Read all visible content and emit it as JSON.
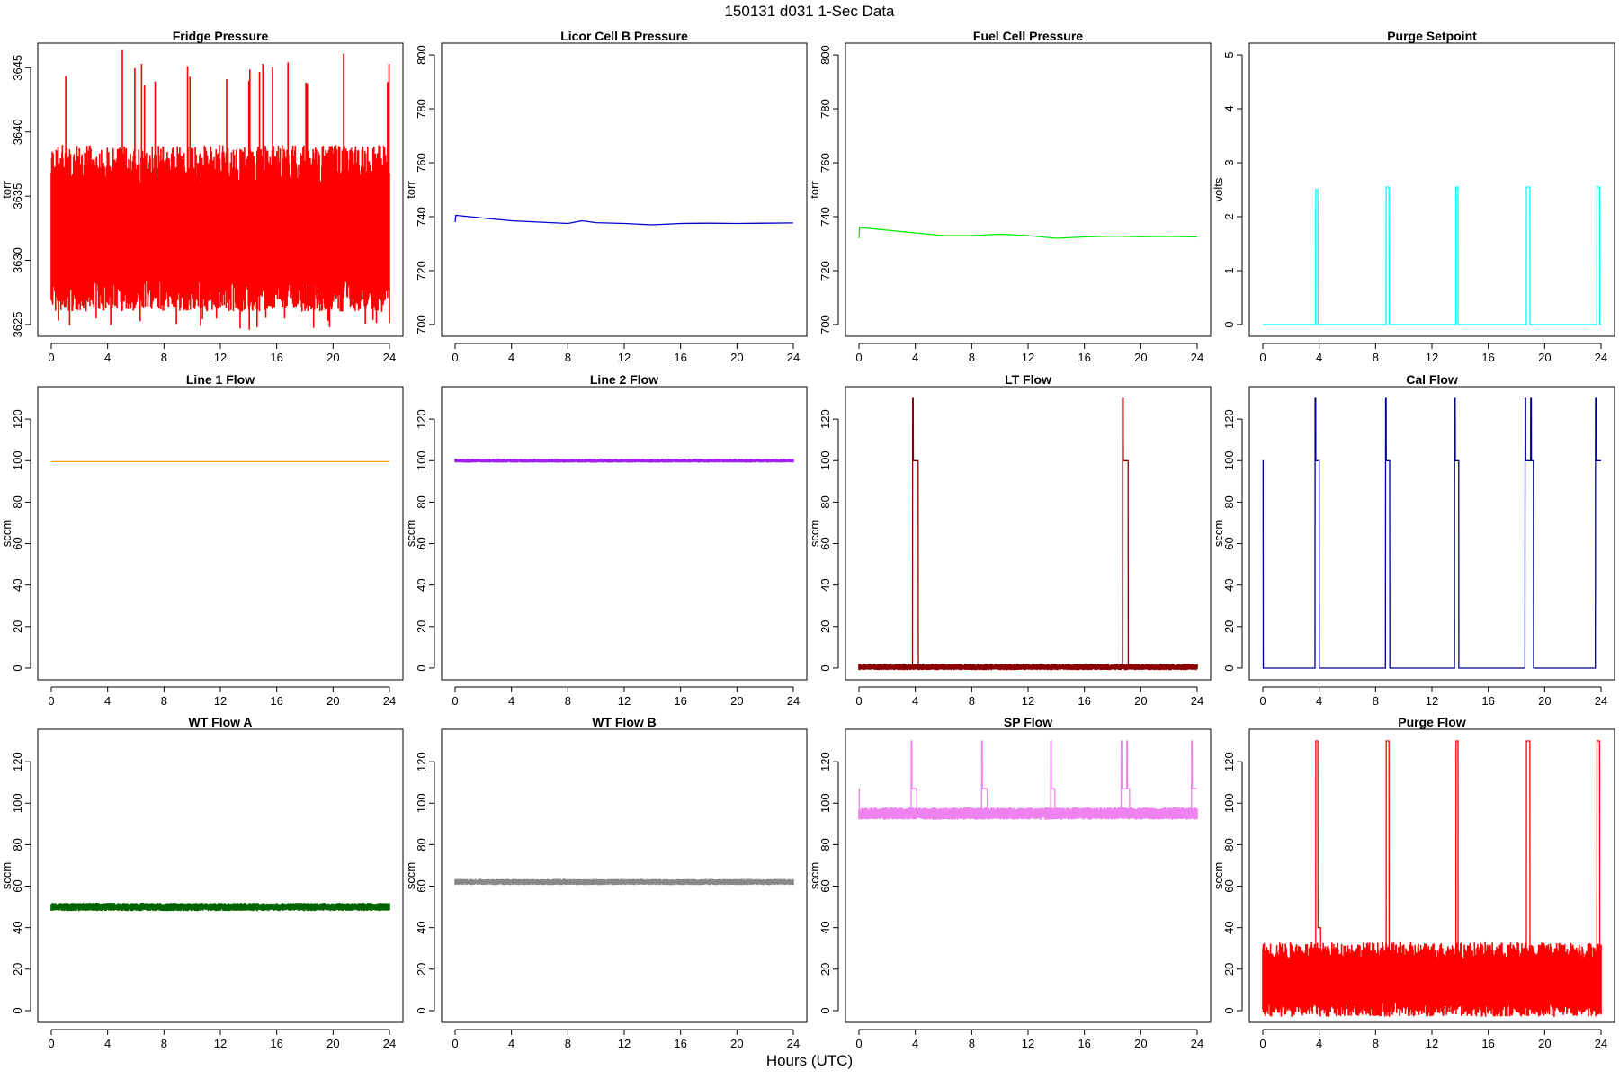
{
  "page_title": "150131    d031    1-Sec Data",
  "x_axis_label": "Hours (UTC)",
  "chart_data": [
    {
      "type": "line",
      "title": "Fridge Pressure",
      "ylabel": "torr",
      "xlim": [
        0,
        24
      ],
      "ylim": [
        3625,
        3646
      ],
      "xticks": [
        0,
        4,
        8,
        12,
        16,
        20,
        24
      ],
      "yticks": [
        3625,
        3630,
        3635,
        3640,
        3645
      ],
      "color": "#ff0000",
      "band": {
        "base": 3632,
        "lo_spread": 6,
        "hi_spread": 7,
        "noise_peak_max": 3646.5,
        "noise_peak_min": 3624.5
      },
      "series": [
        {
          "x": [
            0,
            24
          ],
          "values": [
            3632,
            3632
          ]
        }
      ]
    },
    {
      "type": "line",
      "title": "Licor Cell B Pressure",
      "ylabel": "torr",
      "xlim": [
        0,
        24
      ],
      "ylim": [
        700,
        800
      ],
      "xticks": [
        0,
        4,
        8,
        12,
        16,
        20,
        24
      ],
      "yticks": [
        700,
        720,
        740,
        760,
        780,
        800
      ],
      "color": "#0000cc",
      "series": [
        {
          "x": [
            0,
            0.05,
            2,
            4,
            6,
            8,
            9,
            10,
            12,
            14,
            16,
            18,
            20,
            22,
            24
          ],
          "values": [
            738,
            740.5,
            739.5,
            738.5,
            738,
            737.5,
            738.5,
            737.8,
            737.5,
            737,
            737.5,
            737.6,
            737.5,
            737.6,
            737.7
          ]
        }
      ]
    },
    {
      "type": "line",
      "title": "Fuel Cell Pressure",
      "ylabel": "torr",
      "xlim": [
        0,
        24
      ],
      "ylim": [
        700,
        800
      ],
      "xticks": [
        0,
        4,
        8,
        12,
        16,
        20,
        24
      ],
      "yticks": [
        700,
        720,
        740,
        760,
        780,
        800
      ],
      "color": "#00ee00",
      "series": [
        {
          "x": [
            0,
            0.05,
            2,
            4,
            6,
            8,
            10,
            12,
            14,
            16,
            18,
            20,
            22,
            24
          ],
          "values": [
            732,
            736,
            735,
            734,
            733,
            733,
            733.5,
            733,
            732,
            732.5,
            732.8,
            732.6,
            732.7,
            732.5
          ]
        }
      ]
    },
    {
      "type": "line",
      "title": "Purge Setpoint",
      "ylabel": "volts",
      "xlim": [
        0,
        24
      ],
      "ylim": [
        0,
        5
      ],
      "xticks": [
        0,
        4,
        8,
        12,
        16,
        20,
        24
      ],
      "yticks": [
        0,
        1,
        2,
        3,
        4,
        5
      ],
      "color": "#00ffff",
      "series": [
        {
          "x": [
            0,
            3.75,
            3.76,
            3.9,
            3.91,
            8.75,
            8.76,
            8.95,
            8.96,
            13.7,
            13.71,
            13.85,
            13.86,
            18.7,
            18.71,
            18.95,
            18.96,
            23.7,
            23.71,
            23.9,
            23.91,
            24
          ],
          "values": [
            0,
            0,
            2.5,
            2.5,
            0,
            0,
            2.55,
            2.55,
            0,
            0,
            2.55,
            2.55,
            0,
            0,
            2.55,
            2.55,
            0,
            0,
            2.55,
            2.55,
            0,
            0
          ]
        }
      ]
    },
    {
      "type": "line",
      "title": "Line 1 Flow",
      "ylabel": "sccm",
      "xlim": [
        0,
        24
      ],
      "ylim": [
        0,
        130
      ],
      "xticks": [
        0,
        4,
        8,
        12,
        16,
        20,
        24
      ],
      "yticks": [
        0,
        20,
        40,
        60,
        80,
        100,
        120
      ],
      "color": "#ffa500",
      "series": [
        {
          "x": [
            0,
            24
          ],
          "values": [
            99.5,
            99.5
          ]
        }
      ]
    },
    {
      "type": "line",
      "title": "Line 2 Flow",
      "ylabel": "sccm",
      "xlim": [
        0,
        24
      ],
      "ylim": [
        0,
        130
      ],
      "xticks": [
        0,
        4,
        8,
        12,
        16,
        20,
        24
      ],
      "yticks": [
        0,
        20,
        40,
        60,
        80,
        100,
        120
      ],
      "color": "#a020f0",
      "band": {
        "base": 100,
        "lo_spread": 1,
        "hi_spread": 1
      },
      "series": [
        {
          "x": [
            0,
            24
          ],
          "values": [
            100,
            100
          ]
        }
      ]
    },
    {
      "type": "line",
      "title": "LT Flow",
      "ylabel": "sccm",
      "xlim": [
        0,
        24
      ],
      "ylim": [
        0,
        130
      ],
      "xticks": [
        0,
        4,
        8,
        12,
        16,
        20,
        24
      ],
      "yticks": [
        0,
        20,
        40,
        60,
        80,
        100,
        120
      ],
      "color": "#8b0000",
      "band": {
        "base": 0.5,
        "lo_spread": 1.5,
        "hi_spread": 1.5
      },
      "series": [
        {
          "x": [
            0,
            3.8,
            3.81,
            3.85,
            3.86,
            4.2,
            4.21,
            18.7,
            18.71,
            18.75,
            18.76,
            19.1,
            19.11,
            24
          ],
          "values": [
            0.5,
            0.5,
            130,
            130,
            100,
            100,
            0.5,
            0.5,
            130,
            130,
            100,
            100,
            0.5,
            0.5
          ]
        }
      ]
    },
    {
      "type": "line",
      "title": "Cal Flow",
      "ylabel": "sccm",
      "xlim": [
        0,
        24
      ],
      "ylim": [
        0,
        130
      ],
      "xticks": [
        0,
        4,
        8,
        12,
        16,
        20,
        24
      ],
      "yticks": [
        0,
        20,
        40,
        60,
        80,
        100,
        120
      ],
      "color": "#00008b",
      "series": [
        {
          "x": [
            0,
            0.02,
            0.03,
            3.7,
            3.71,
            3.75,
            3.76,
            4.0,
            4.01,
            8.7,
            8.71,
            8.75,
            8.76,
            9.0,
            9.01,
            13.6,
            13.61,
            13.65,
            13.66,
            13.9,
            13.91,
            18.6,
            18.61,
            18.65,
            18.66,
            19.0,
            19.01,
            19.05,
            19.06,
            19.2,
            19.21,
            23.6,
            23.61,
            23.65,
            23.66,
            24
          ],
          "values": [
            100,
            100,
            0,
            0,
            130,
            130,
            100,
            100,
            0,
            0,
            130,
            130,
            100,
            100,
            0,
            0,
            130,
            130,
            100,
            100,
            0,
            0,
            130,
            130,
            100,
            100,
            130,
            130,
            100,
            100,
            0,
            0,
            130,
            130,
            100,
            100
          ]
        }
      ]
    },
    {
      "type": "line",
      "title": "WT Flow A",
      "ylabel": "sccm",
      "xlim": [
        0,
        24
      ],
      "ylim": [
        0,
        130
      ],
      "xticks": [
        0,
        4,
        8,
        12,
        16,
        20,
        24
      ],
      "yticks": [
        0,
        20,
        40,
        60,
        80,
        100,
        120
      ],
      "color": "#006400",
      "band": {
        "base": 50,
        "lo_spread": 2,
        "hi_spread": 2
      },
      "series": [
        {
          "x": [
            0,
            24
          ],
          "values": [
            50,
            50
          ]
        }
      ]
    },
    {
      "type": "line",
      "title": "WT Flow B",
      "ylabel": "sccm",
      "xlim": [
        0,
        24
      ],
      "ylim": [
        0,
        130
      ],
      "xticks": [
        0,
        4,
        8,
        12,
        16,
        20,
        24
      ],
      "yticks": [
        0,
        20,
        40,
        60,
        80,
        100,
        120
      ],
      "color": "#888888",
      "band": {
        "base": 62,
        "lo_spread": 1.5,
        "hi_spread": 1.5
      },
      "series": [
        {
          "x": [
            0,
            24
          ],
          "values": [
            62,
            62
          ]
        }
      ]
    },
    {
      "type": "line",
      "title": "SP Flow",
      "ylabel": "sccm",
      "xlim": [
        0,
        24
      ],
      "ylim": [
        0,
        130
      ],
      "xticks": [
        0,
        4,
        8,
        12,
        16,
        20,
        24
      ],
      "yticks": [
        0,
        20,
        40,
        60,
        80,
        100,
        120
      ],
      "color": "#ee82ee",
      "band": {
        "base": 95,
        "lo_spread": 3,
        "hi_spread": 3
      },
      "series": [
        {
          "x": [
            0,
            0.02,
            0.03,
            3.7,
            3.71,
            3.75,
            3.76,
            4.1,
            4.11,
            8.7,
            8.71,
            8.75,
            8.76,
            9.1,
            9.11,
            13.6,
            13.61,
            13.65,
            13.66,
            13.9,
            13.91,
            18.6,
            18.61,
            18.65,
            18.66,
            19.0,
            19.01,
            19.05,
            19.06,
            19.2,
            19.21,
            23.6,
            23.61,
            23.65,
            23.66,
            24
          ],
          "values": [
            107,
            107,
            95,
            95,
            130,
            130,
            107,
            107,
            95,
            95,
            130,
            130,
            107,
            107,
            95,
            95,
            130,
            130,
            107,
            107,
            95,
            95,
            130,
            130,
            107,
            107,
            130,
            130,
            107,
            107,
            95,
            95,
            130,
            130,
            107,
            107
          ]
        }
      ]
    },
    {
      "type": "line",
      "title": "Purge Flow",
      "ylabel": "sccm",
      "xlim": [
        0,
        24
      ],
      "ylim": [
        0,
        130
      ],
      "xticks": [
        0,
        4,
        8,
        12,
        16,
        20,
        24
      ],
      "yticks": [
        0,
        20,
        40,
        60,
        80,
        100,
        120
      ],
      "color": "#ff0000",
      "band": {
        "base": 13,
        "lo_spread": 16,
        "hi_spread": 20
      },
      "series": [
        {
          "x": [
            0,
            3.75,
            3.76,
            3.9,
            3.91,
            4.1,
            4.11,
            8.75,
            8.76,
            8.95,
            8.96,
            13.7,
            13.71,
            13.85,
            13.86,
            18.7,
            18.71,
            18.95,
            18.96,
            23.7,
            23.71,
            23.9,
            23.91,
            24
          ],
          "values": [
            13,
            13,
            130,
            130,
            40,
            40,
            13,
            13,
            130,
            130,
            13,
            13,
            130,
            130,
            13,
            13,
            130,
            130,
            13,
            13,
            130,
            130,
            13,
            13
          ]
        }
      ]
    }
  ]
}
